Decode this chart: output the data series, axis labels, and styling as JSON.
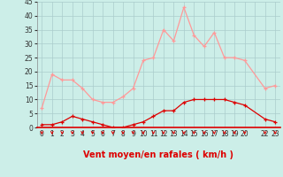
{
  "hours": [
    0,
    1,
    2,
    3,
    4,
    5,
    6,
    7,
    8,
    9,
    10,
    11,
    12,
    13,
    14,
    15,
    16,
    17,
    18,
    19,
    20,
    22,
    23
  ],
  "wind_avg": [
    1,
    1,
    2,
    4,
    3,
    2,
    1,
    0,
    0,
    1,
    2,
    4,
    6,
    6,
    9,
    10,
    10,
    10,
    10,
    9,
    8,
    3,
    2
  ],
  "wind_gust": [
    7,
    19,
    17,
    17,
    14,
    10,
    9,
    9,
    11,
    14,
    24,
    25,
    35,
    31,
    43,
    33,
    29,
    34,
    25,
    25,
    24,
    14,
    15
  ],
  "bg_color": "#cceee8",
  "grid_color": "#aacccc",
  "line_avg_color": "#dd0000",
  "line_gust_color": "#ff9999",
  "arrow_color": "#dd0000",
  "xlabel": "Vent moyen/en rafales ( km/h )",
  "ylim": [
    0,
    45
  ],
  "yticks": [
    0,
    5,
    10,
    15,
    20,
    25,
    30,
    35,
    40,
    45
  ],
  "all_hours": [
    0,
    1,
    2,
    3,
    4,
    5,
    6,
    7,
    8,
    9,
    10,
    11,
    12,
    13,
    14,
    15,
    16,
    17,
    18,
    19,
    20,
    21,
    22,
    23
  ],
  "xtick_labels": [
    "0",
    "1",
    "2",
    "3",
    "4",
    "5",
    "6",
    "7",
    "8",
    "9",
    "10",
    "11",
    "12",
    "13",
    "14",
    "15",
    "16",
    "17",
    "18",
    "19",
    "20",
    "",
    "22",
    "23"
  ]
}
